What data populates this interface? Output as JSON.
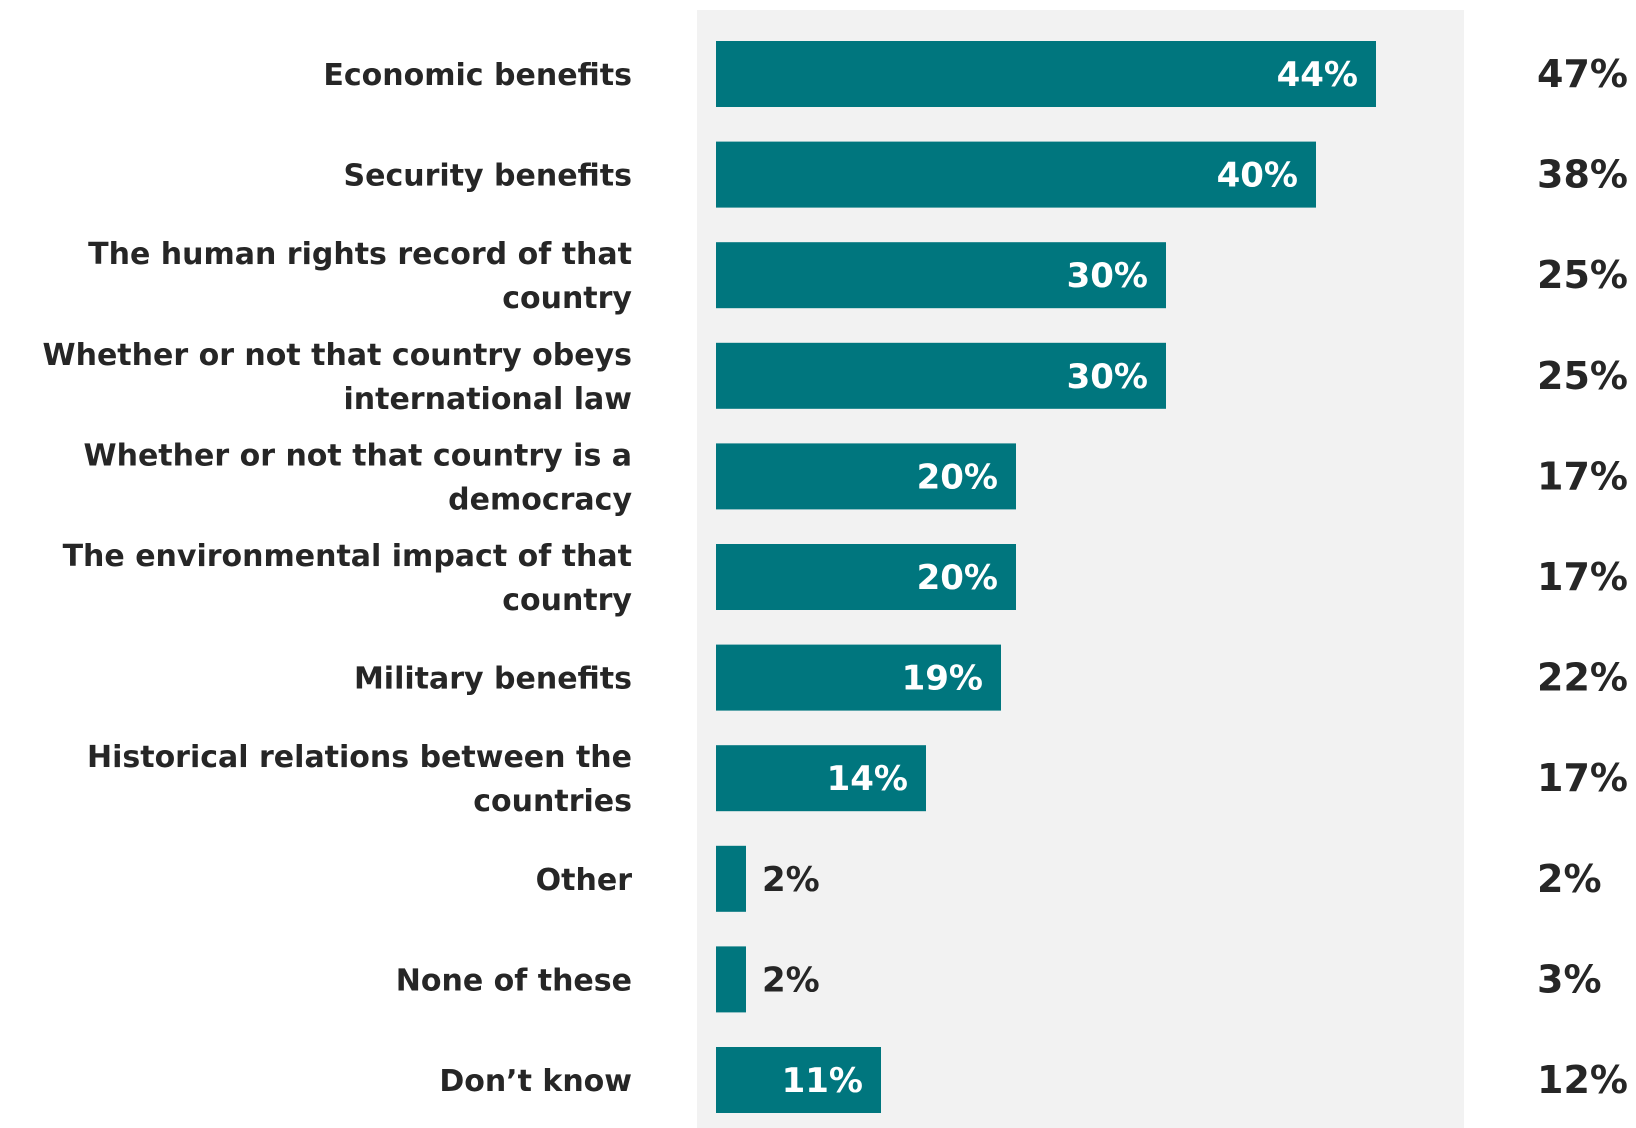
{
  "colors": {
    "bar": "#00767E",
    "panel": "#F2F2F2",
    "text_dark": "#262626",
    "text_light": "#FFFFFF"
  },
  "chart_data": {
    "type": "bar",
    "orientation": "horizontal",
    "title": "",
    "xlabel": "",
    "ylabel": "",
    "xlim": [
      0,
      50
    ],
    "grid": false,
    "legend": "none",
    "categories": [
      [
        "Economic benefits"
      ],
      [
        "Security benefits"
      ],
      [
        "The human rights record of that",
        "country"
      ],
      [
        "Whether or not that country obeys",
        "international law"
      ],
      [
        "Whether or not that country is a",
        "democracy"
      ],
      [
        "The environmental impact of that",
        "country"
      ],
      [
        "Military benefits"
      ],
      [
        "Historical relations between the",
        "countries"
      ],
      [
        "Other"
      ],
      [
        "None of these"
      ],
      [
        "Don’t know"
      ]
    ],
    "values": [
      44,
      40,
      30,
      30,
      20,
      20,
      19,
      14,
      2,
      2,
      11
    ],
    "value_labels": [
      "44%",
      "40%",
      "30%",
      "30%",
      "20%",
      "20%",
      "19%",
      "14%",
      "2%",
      "2%",
      "11%"
    ],
    "comparison_values": [
      47,
      38,
      25,
      25,
      17,
      17,
      22,
      17,
      2,
      3,
      12
    ],
    "comparison_labels": [
      "47%",
      "38%",
      "25%",
      "25%",
      "17%",
      "17%",
      "22%",
      "17%",
      "2%",
      "3%",
      "12%"
    ]
  }
}
